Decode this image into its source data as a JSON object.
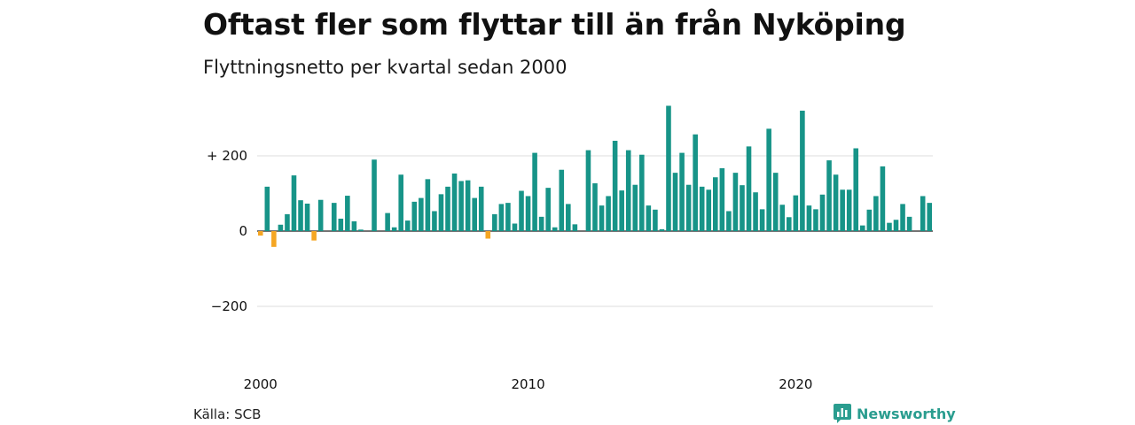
{
  "header": {
    "title": "Oftast fler som flyttar till än från Nyköping",
    "subtitle": "Flyttningsnetto per kvartal sedan 2000"
  },
  "footer": {
    "source": "Källa: SCB",
    "brand": "Newsworthy"
  },
  "colors": {
    "positive": "#179488",
    "negative": "#f5a623",
    "grid": "#dddddd",
    "brand": "#2a9d8f"
  },
  "icons": {
    "brand_logo": "newsworthy-logo-icon"
  },
  "chart_data": {
    "type": "bar",
    "ylim": [
      -300,
      330
    ],
    "y_ticks": [
      {
        "value": 200,
        "label": "+ 200"
      },
      {
        "value": 0,
        "label": "0"
      },
      {
        "value": -200,
        "label": "−200"
      }
    ],
    "x_ticks": [
      {
        "index": 0,
        "label": "2000"
      },
      {
        "index": 40,
        "label": "2010"
      },
      {
        "index": 80,
        "label": "2020"
      }
    ],
    "categories": [
      "2000K1",
      "2000K2",
      "2000K3",
      "2000K4",
      "2001K1",
      "2001K2",
      "2001K3",
      "2001K4",
      "2002K1",
      "2002K2",
      "2002K3",
      "2002K4",
      "2003K1",
      "2003K2",
      "2003K3",
      "2003K4",
      "2004K1",
      "2004K2",
      "2004K3",
      "2004K4",
      "2005K1",
      "2005K2",
      "2005K3",
      "2005K4",
      "2006K1",
      "2006K2",
      "2006K3",
      "2006K4",
      "2007K1",
      "2007K2",
      "2007K3",
      "2007K4",
      "2008K1",
      "2008K2",
      "2008K3",
      "2008K4",
      "2009K1",
      "2009K2",
      "2009K3",
      "2009K4",
      "2010K1",
      "2010K2",
      "2010K3",
      "2010K4",
      "2011K1",
      "2011K2",
      "2011K3",
      "2011K4",
      "2012K1",
      "2012K2",
      "2012K3",
      "2012K4",
      "2013K1",
      "2013K2",
      "2013K3",
      "2013K4",
      "2014K1",
      "2014K2",
      "2014K3",
      "2014K4",
      "2015K1",
      "2015K2",
      "2015K3",
      "2015K4",
      "2016K1",
      "2016K2",
      "2016K3",
      "2016K4",
      "2017K1",
      "2017K2",
      "2017K3",
      "2017K4",
      "2018K1",
      "2018K2",
      "2018K3",
      "2018K4",
      "2019K1",
      "2019K2",
      "2019K3",
      "2019K4",
      "2020K1",
      "2020K2",
      "2020K3",
      "2020K4",
      "2021K1",
      "2021K2",
      "2021K3",
      "2021K4",
      "2022K1",
      "2022K2",
      "2022K3",
      "2022K4",
      "2023K1",
      "2023K2",
      "2023K3",
      "2023K4",
      "2024K1",
      "2024K2",
      "2024K3",
      "2024K4",
      "2025K1"
    ],
    "values": [
      -12,
      118,
      -42,
      17,
      45,
      148,
      82,
      73,
      -25,
      83,
      0,
      75,
      33,
      94,
      26,
      4,
      0,
      190,
      0,
      48,
      10,
      150,
      28,
      78,
      88,
      138,
      53,
      98,
      118,
      153,
      133,
      135,
      88,
      118,
      -20,
      45,
      72,
      75,
      20,
      107,
      93,
      208,
      38,
      115,
      10,
      163,
      72,
      18,
      0,
      215,
      127,
      68,
      93,
      240,
      108,
      215,
      123,
      203,
      68,
      57,
      5,
      333,
      155,
      208,
      123,
      257,
      118,
      110,
      143,
      167,
      53,
      155,
      122,
      225,
      103,
      58,
      272,
      155,
      70,
      37,
      95,
      320,
      68,
      58,
      97,
      188,
      150,
      110,
      110,
      220,
      15,
      57,
      93,
      172,
      22,
      30,
      72,
      38,
      0,
      93,
      75
    ]
  }
}
